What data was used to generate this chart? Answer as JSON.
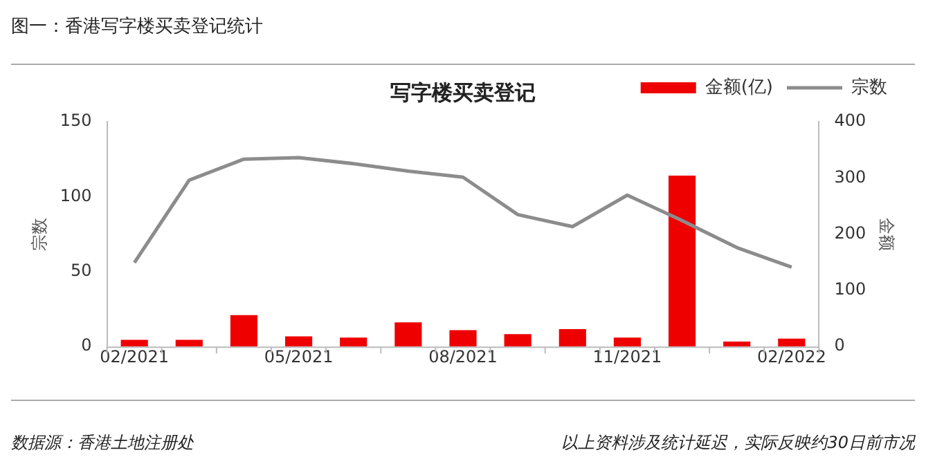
{
  "chart_data": {
    "type": "bar",
    "title": "图一：香港写字楼买卖登记统计",
    "subtitle": "写字楼买卖登记",
    "categories": [
      "02/2021",
      null,
      null,
      "05/2021",
      null,
      null,
      "08/2021",
      null,
      null,
      "11/2021",
      null,
      null,
      "02/2022"
    ],
    "series": [
      {
        "name": "金额(亿)",
        "axis": "y2",
        "color": "#ee0000",
        "values": [
          12,
          12,
          56,
          18,
          16,
          43,
          29,
          22,
          31,
          16,
          304,
          9,
          14
        ]
      },
      {
        "name": "宗数",
        "type": "line",
        "axis": "y",
        "color": "#8c8c8c",
        "values": [
          56,
          111,
          125,
          126,
          122,
          117,
          113,
          88,
          80,
          101,
          84,
          66,
          53
        ]
      }
    ],
    "ylabel": "宗数",
    "y2label": "金额",
    "ylim": [
      0,
      150
    ],
    "yticks": [
      0,
      50,
      100,
      150
    ],
    "y2lim": [
      0,
      400
    ],
    "y2ticks": [
      0,
      100,
      200,
      300,
      400
    ],
    "legend": "top right",
    "grid": false,
    "marker": "none",
    "annotations": [
      "数据源：香港土地注册处",
      "以上资料涉及统计延迟，实际反映约30日前市况"
    ]
  }
}
